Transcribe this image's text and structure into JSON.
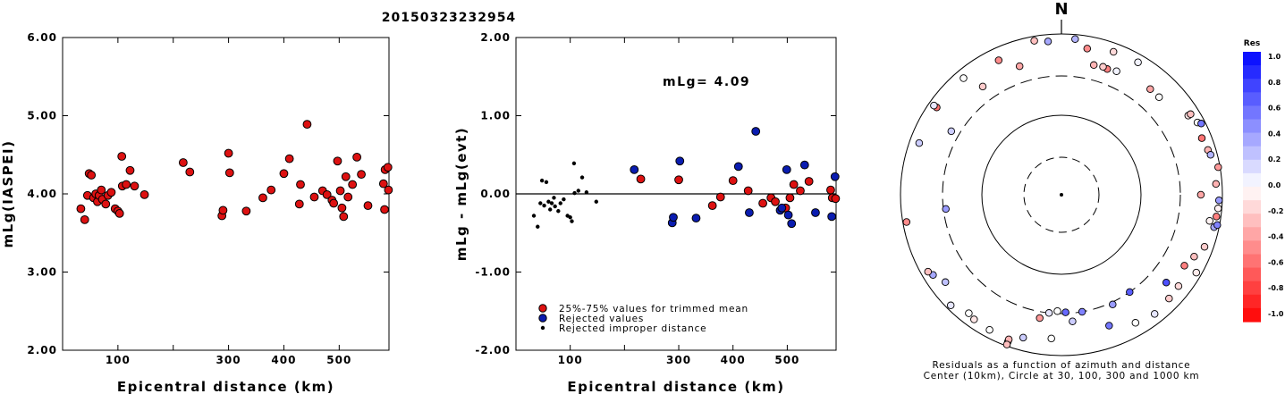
{
  "figure_title": "20150323232954",
  "colors": {
    "trimmed": "#dd1111",
    "rejected": "#0a1cb0",
    "improper": "#000000"
  },
  "chart_data": [
    {
      "type": "scatter",
      "id": "left",
      "xlabel": "Epicentral distance (km)",
      "ylabel": "mLg(IASPEI)",
      "xlim": [
        0,
        590
      ],
      "ylim": [
        2.0,
        6.0
      ],
      "xticks": [
        100,
        200,
        300,
        400,
        500
      ],
      "xtick_labels": [
        "100",
        "",
        "300",
        "400",
        "500"
      ],
      "yticks": [
        2.0,
        3.0,
        4.0,
        5.0,
        6.0
      ],
      "ytick_labels": [
        "2.00",
        "3.00",
        "4.00",
        "5.00",
        "6.00"
      ],
      "series": [
        {
          "role": "trimmed",
          "points": [
            [
              33,
              3.81
            ],
            [
              40,
              3.67
            ],
            [
              45,
              3.98
            ],
            [
              48,
              4.26
            ],
            [
              52,
              4.24
            ],
            [
              56,
              3.95
            ],
            [
              60,
              4.0
            ],
            [
              63,
              3.9
            ],
            [
              66,
              3.98
            ],
            [
              70,
              4.05
            ],
            [
              72,
              3.93
            ],
            [
              78,
              3.87
            ],
            [
              82,
              3.98
            ],
            [
              88,
              4.02
            ],
            [
              95,
              3.81
            ],
            [
              100,
              3.78
            ],
            [
              103,
              3.75
            ],
            [
              107,
              4.48
            ],
            [
              108,
              4.1
            ],
            [
              115,
              4.12
            ],
            [
              122,
              4.3
            ],
            [
              130,
              4.1
            ],
            [
              148,
              3.99
            ],
            [
              218,
              4.4
            ],
            [
              230,
              4.28
            ],
            [
              288,
              3.72
            ],
            [
              290,
              3.79
            ],
            [
              300,
              4.52
            ],
            [
              302,
              4.27
            ],
            [
              332,
              3.78
            ],
            [
              362,
              3.95
            ],
            [
              377,
              4.05
            ],
            [
              400,
              4.26
            ],
            [
              410,
              4.45
            ],
            [
              428,
              3.87
            ],
            [
              430,
              4.12
            ],
            [
              442,
              4.89
            ],
            [
              455,
              3.96
            ],
            [
              470,
              4.04
            ],
            [
              478,
              3.99
            ],
            [
              487,
              3.92
            ],
            [
              490,
              3.88
            ],
            [
              497,
              4.42
            ],
            [
              502,
              4.04
            ],
            [
              505,
              3.82
            ],
            [
              508,
              3.71
            ],
            [
              512,
              4.22
            ],
            [
              516,
              3.96
            ],
            [
              524,
              4.12
            ],
            [
              532,
              4.47
            ],
            [
              540,
              4.25
            ],
            [
              552,
              3.85
            ],
            [
              580,
              4.13
            ],
            [
              582,
              3.8
            ],
            [
              583,
              4.31
            ],
            [
              588,
              4.34
            ],
            [
              589,
              4.05
            ]
          ]
        }
      ]
    },
    {
      "type": "scatter",
      "id": "middle",
      "xlabel": "Epicentral distance (km)",
      "ylabel": "mLg - mLg(evt)",
      "annotation": "mLg= 4.09",
      "xlim": [
        0,
        590
      ],
      "ylim": [
        -2.0,
        2.0
      ],
      "xticks": [
        100,
        200,
        300,
        400,
        500
      ],
      "xtick_labels": [
        "100",
        "",
        "300",
        "400",
        "500"
      ],
      "yticks": [
        -2.0,
        -1.0,
        0.0,
        1.0,
        2.0
      ],
      "ytick_labels": [
        "-2.00",
        "-1.00",
        "0.00",
        "1.00",
        "2.00"
      ],
      "legend": [
        "25%-75% values for trimmed mean",
        "Rejected values",
        "Rejected improper distance"
      ],
      "series": [
        {
          "role": "trimmed",
          "points": [
            [
              230,
              0.19
            ],
            [
              300,
              0.18
            ],
            [
              362,
              -0.15
            ],
            [
              377,
              -0.04
            ],
            [
              400,
              0.17
            ],
            [
              428,
              0.04
            ],
            [
              455,
              -0.12
            ],
            [
              470,
              -0.05
            ],
            [
              478,
              -0.1
            ],
            [
              497,
              -0.18
            ],
            [
              505,
              -0.05
            ],
            [
              512,
              0.12
            ],
            [
              524,
              0.04
            ],
            [
              540,
              0.16
            ],
            [
              580,
              0.05
            ],
            [
              583,
              -0.05
            ],
            [
              589,
              -0.06
            ]
          ]
        },
        {
          "role": "rejected",
          "points": [
            [
              218,
              0.31
            ],
            [
              288,
              -0.37
            ],
            [
              290,
              -0.3
            ],
            [
              302,
              0.42
            ],
            [
              332,
              -0.31
            ],
            [
              410,
              0.35
            ],
            [
              430,
              -0.24
            ],
            [
              442,
              0.8
            ],
            [
              487,
              -0.21
            ],
            [
              490,
              -0.18
            ],
            [
              499,
              0.31
            ],
            [
              502,
              -0.27
            ],
            [
              508,
              -0.38
            ],
            [
              532,
              0.37
            ],
            [
              552,
              -0.24
            ],
            [
              582,
              -0.29
            ],
            [
              588,
              0.22
            ]
          ]
        },
        {
          "role": "improper",
          "points": [
            [
              33,
              -0.28
            ],
            [
              40,
              -0.42
            ],
            [
              45,
              -0.12
            ],
            [
              48,
              0.17
            ],
            [
              52,
              -0.15
            ],
            [
              56,
              0.15
            ],
            [
              60,
              -0.1
            ],
            [
              63,
              -0.2
            ],
            [
              66,
              -0.12
            ],
            [
              70,
              -0.05
            ],
            [
              72,
              -0.16
            ],
            [
              78,
              -0.22
            ],
            [
              82,
              -0.12
            ],
            [
              88,
              -0.07
            ],
            [
              95,
              -0.28
            ],
            [
              100,
              -0.3
            ],
            [
              103,
              -0.35
            ],
            [
              107,
              0.39
            ],
            [
              108,
              0.01
            ],
            [
              115,
              0.04
            ],
            [
              122,
              0.21
            ],
            [
              130,
              0.02
            ],
            [
              148,
              -0.1
            ]
          ]
        }
      ]
    },
    {
      "type": "polar_scatter",
      "id": "residual-map",
      "north_label": "N",
      "caption_line1": "Residuals as a function of azimuth and distance",
      "caption_line2": "Center (10km), Circle at 30, 100, 300 and 1000 km",
      "colorbar_title": "Res",
      "colorbar_range": [
        -1.0,
        1.0
      ],
      "colorbar_ticks": [
        "1.0",
        "0.8",
        "0.6",
        "0.4",
        "0.2",
        "0.0",
        "-0.2",
        "-0.4",
        "-0.6",
        "-0.8",
        "-1.0"
      ],
      "rings_km": [
        30,
        100,
        300,
        1000
      ],
      "stations": [
        [
          80,
          -0.4
        ],
        [
          73,
          -0.3
        ],
        [
          110,
          -0.2
        ],
        [
          68,
          -0.55
        ],
        [
          95,
          -0.05
        ],
        [
          120,
          -0.08
        ],
        [
          102,
          0.35
        ],
        [
          62,
          0.0
        ],
        [
          86,
          -0.3
        ],
        [
          40,
          -0.35
        ],
        [
          98,
          -0.5
        ],
        [
          128,
          -0.15
        ],
        [
          115,
          -0.25
        ],
        [
          75,
          0.3
        ],
        [
          63,
          0.55
        ],
        [
          92,
          0.4
        ],
        [
          142,
          0.1
        ],
        [
          58,
          -0.1
        ],
        [
          101,
          0.5
        ],
        [
          20,
          -0.15
        ],
        [
          30,
          0.05
        ],
        [
          134,
          -0.2
        ],
        [
          150,
          0.0
        ],
        [
          5,
          0.3
        ],
        [
          355,
          0.35
        ],
        [
          335,
          -0.45
        ],
        [
          305,
          -0.55
        ],
        [
          290,
          0.2
        ],
        [
          260,
          -0.45
        ],
        [
          263,
          0.4
        ],
        [
          238,
          0.35
        ],
        [
          215,
          -0.1
        ],
        [
          218,
          0.0
        ],
        [
          200,
          0.0
        ],
        [
          184,
          0.0
        ],
        [
          190,
          -0.4
        ],
        [
          160,
          0.55
        ],
        [
          170,
          0.5
        ],
        [
          175,
          0.2
        ],
        [
          178,
          0.6
        ],
        [
          182,
          0.0
        ],
        [
          186,
          0.1
        ],
        [
          208,
          0.0
        ],
        [
          225,
          0.1
        ],
        [
          145,
          0.65
        ],
        [
          130,
          0.7
        ],
        [
          155,
          0.4
        ],
        [
          200,
          -0.3
        ],
        [
          10,
          -0.45
        ],
        [
          45,
          0.0
        ],
        [
          58,
          -0.25
        ],
        [
          320,
          0.0
        ],
        [
          342,
          -0.35
        ],
        [
          14,
          -0.3
        ],
        [
          24,
          0.05
        ],
        [
          350,
          -0.25
        ],
        [
          20,
          -0.5
        ],
        [
          18,
          -0.2
        ],
        [
          300,
          0.2
        ],
        [
          324,
          -0.2
        ],
        [
          305,
          0.1
        ],
        [
          240,
          -0.25
        ],
        [
          233,
          0.25
        ],
        [
          120,
          -0.5
        ],
        [
          90,
          -0.35
        ],
        [
          100,
          -0.05
        ],
        [
          195,
          0.2
        ],
        [
          200,
          -0.25
        ]
      ],
      "station_radii_km": [
        950,
        800,
        780,
        760,
        900,
        860,
        870,
        820,
        840,
        520,
        880,
        700,
        660,
        830,
        890,
        910,
        760,
        720,
        940,
        780,
        800,
        720,
        690,
        880,
        820,
        700,
        780,
        760,
        900,
        280,
        760,
        780,
        740,
        880,
        620,
        360,
        540,
        300,
        380,
        290,
        280,
        300,
        800,
        880,
        300,
        500,
        320,
        820,
        700,
        520,
        780,
        780,
        480,
        460,
        480,
        880,
        460,
        470,
        380,
        460,
        860,
        820,
        640,
        580,
        540,
        740,
        690,
        960
      ]
    }
  ]
}
